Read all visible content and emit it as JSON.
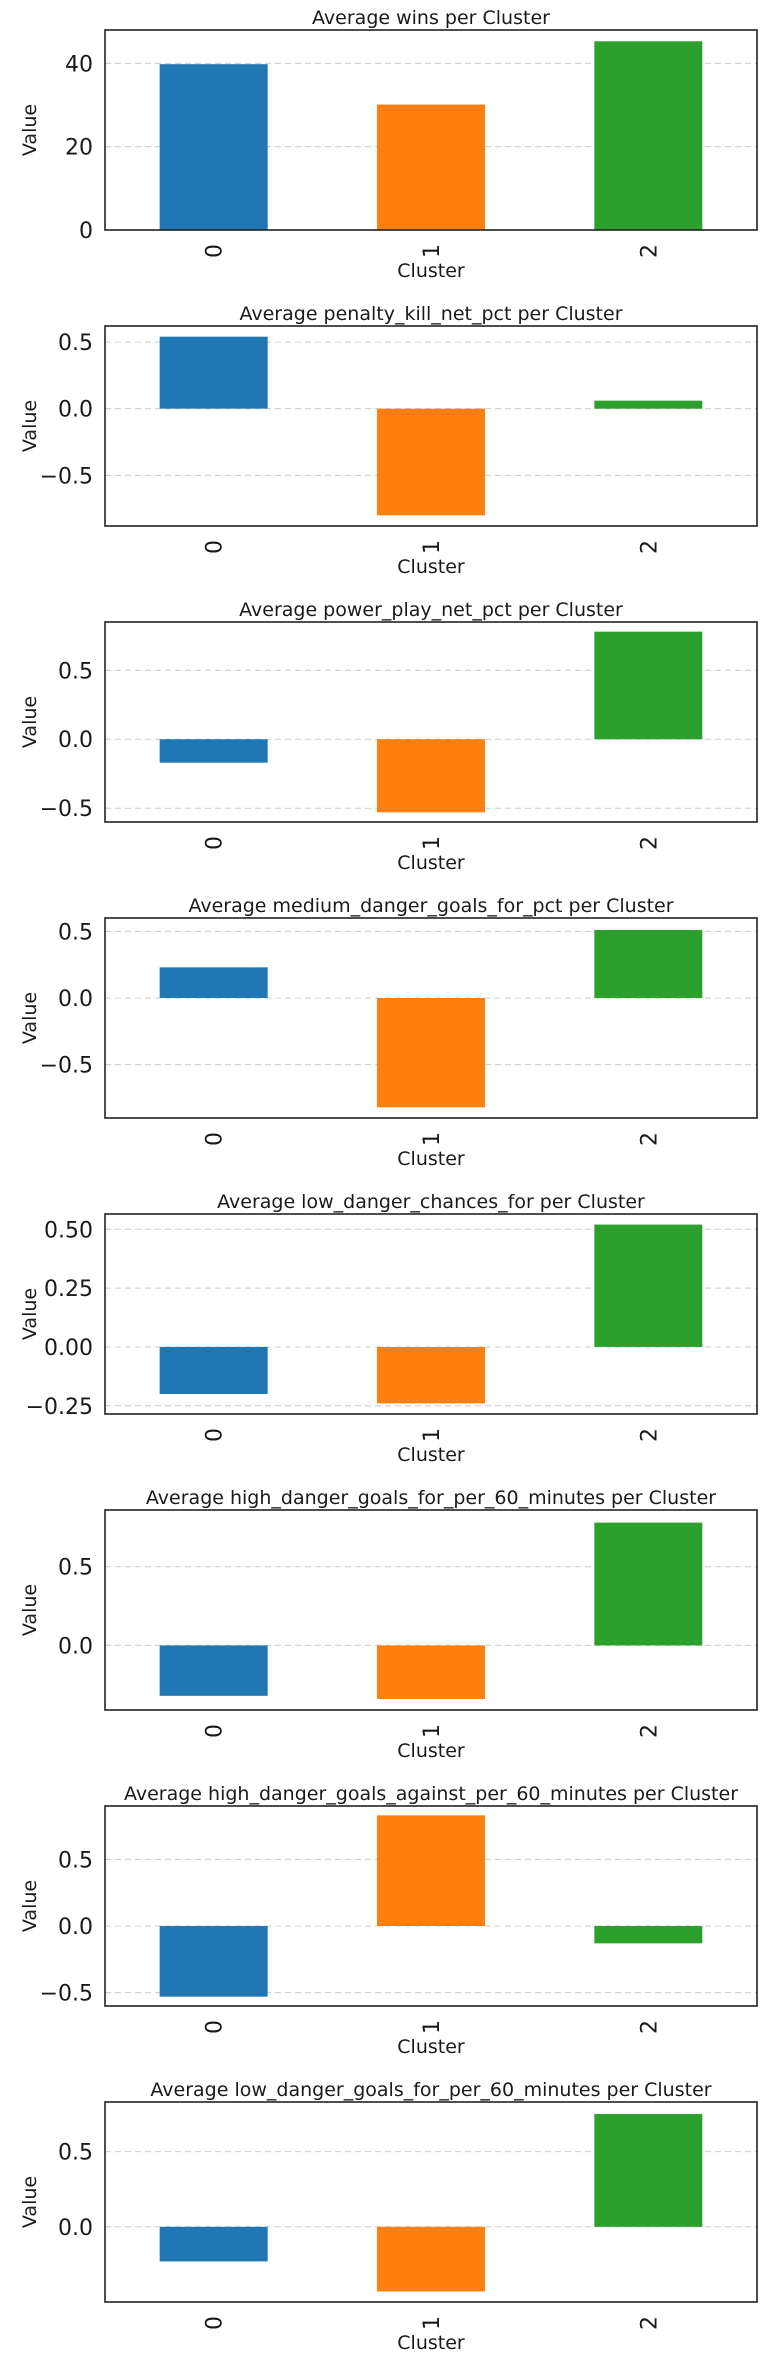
{
  "chart_data": [
    {
      "type": "bar",
      "title": "Average wins per Cluster",
      "xlabel": "Cluster",
      "ylabel": "Value",
      "categories": [
        "0",
        "1",
        "2"
      ],
      "values": [
        39.8,
        30.1,
        45.3
      ],
      "ylim": [
        0,
        48
      ],
      "yticks": [
        0,
        20,
        40
      ],
      "ytick_labels": [
        "0",
        "20",
        "40"
      ],
      "grid": true
    },
    {
      "type": "bar",
      "title": "Average penalty_kill_net_pct per Cluster",
      "xlabel": "Cluster",
      "ylabel": "Value",
      "categories": [
        "0",
        "1",
        "2"
      ],
      "values": [
        0.54,
        -0.8,
        0.06
      ],
      "ylim": [
        -0.88,
        0.62
      ],
      "yticks": [
        0.5,
        0,
        -0.5
      ],
      "ytick_labels": [
        "0.5",
        "0.0",
        "−0.5"
      ],
      "grid": true
    },
    {
      "type": "bar",
      "title": "Average power_play_net_pct per Cluster",
      "xlabel": "Cluster",
      "ylabel": "Value",
      "categories": [
        "0",
        "1",
        "2"
      ],
      "values": [
        -0.17,
        -0.53,
        0.78
      ],
      "ylim": [
        -0.6,
        0.85
      ],
      "yticks": [
        0.5,
        0,
        -0.5
      ],
      "ytick_labels": [
        "0.5",
        "0.0",
        "−0.5"
      ],
      "grid": true
    },
    {
      "type": "bar",
      "title": "Average medium_danger_goals_for_pct per Cluster",
      "xlabel": "Cluster",
      "ylabel": "Value",
      "categories": [
        "0",
        "1",
        "2"
      ],
      "values": [
        0.23,
        -0.82,
        0.51
      ],
      "ylim": [
        -0.9,
        0.6
      ],
      "yticks": [
        0.5,
        0,
        -0.5
      ],
      "ytick_labels": [
        "0.5",
        "0.0",
        "−0.5"
      ],
      "grid": true
    },
    {
      "type": "bar",
      "title": "Average low_danger_chances_for per Cluster",
      "xlabel": "Cluster",
      "ylabel": "Value",
      "categories": [
        "0",
        "1",
        "2"
      ],
      "values": [
        -0.2,
        -0.24,
        0.52
      ],
      "ylim": [
        -0.285,
        0.565
      ],
      "yticks": [
        0.5,
        0.25,
        0,
        -0.25
      ],
      "ytick_labels": [
        "0.50",
        "0.25",
        "0.00",
        "−0.25"
      ],
      "grid": true
    },
    {
      "type": "bar",
      "title": "Average high_danger_goals_for_per_60_minutes per Cluster",
      "xlabel": "Cluster",
      "ylabel": "Value",
      "categories": [
        "0",
        "1",
        "2"
      ],
      "values": [
        -0.32,
        -0.34,
        0.78
      ],
      "ylim": [
        -0.41,
        0.86
      ],
      "yticks": [
        0.5,
        0
      ],
      "ytick_labels": [
        "0.5",
        "0.0"
      ],
      "grid": true
    },
    {
      "type": "bar",
      "title": "Average high_danger_goals_against_per_60_minutes per Cluster",
      "xlabel": "Cluster",
      "ylabel": "Value",
      "categories": [
        "0",
        "1",
        "2"
      ],
      "values": [
        -0.53,
        0.83,
        -0.13
      ],
      "ylim": [
        -0.6,
        0.9
      ],
      "yticks": [
        0.5,
        0,
        -0.5
      ],
      "ytick_labels": [
        "0.5",
        "0.0",
        "−0.5"
      ],
      "grid": true
    },
    {
      "type": "bar",
      "title": "Average low_danger_goals_for_per_60_minutes per Cluster",
      "xlabel": "Cluster",
      "ylabel": "Value",
      "categories": [
        "0",
        "1",
        "2"
      ],
      "values": [
        -0.23,
        -0.43,
        0.75
      ],
      "ylim": [
        -0.5,
        0.83
      ],
      "yticks": [
        0.5,
        0
      ],
      "ytick_labels": [
        "0.5",
        "0.0"
      ],
      "grid": true
    }
  ],
  "colors": {
    "bar_0": "#1f77b4",
    "bar_1": "#ff7f0e",
    "bar_2": "#2ca02c",
    "grid": "#cccccc",
    "axis": "#222222",
    "text": "#1a1a1a"
  }
}
